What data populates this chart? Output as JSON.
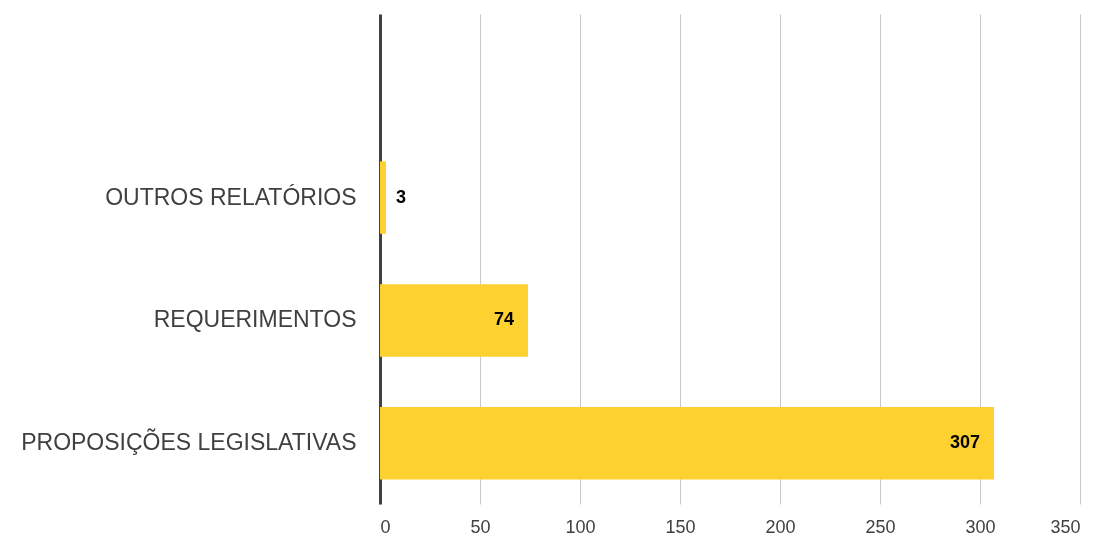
{
  "chart_data": {
    "type": "bar",
    "orientation": "horizontal",
    "categories": [
      null,
      "OUTROS RELATÓRIOS",
      "REQUERIMENTOS",
      "PROPOSIÇÕES LEGISLATIVAS"
    ],
    "values": [
      null,
      3,
      74,
      307
    ],
    "color": "#fdd12f",
    "xlim": [
      0,
      350
    ],
    "xticks": [
      0,
      50,
      100,
      150,
      200,
      250,
      300,
      350
    ],
    "grid": "x",
    "data_labels": true
  }
}
